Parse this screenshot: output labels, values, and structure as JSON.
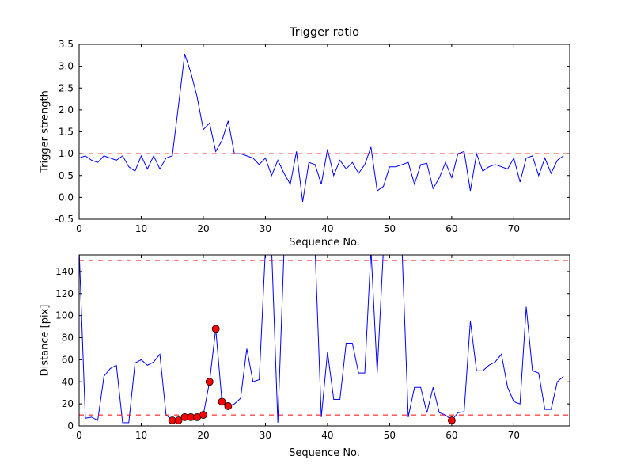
{
  "chart_data": [
    {
      "type": "line",
      "title": "Trigger ratio",
      "xlabel": "Sequence No.",
      "ylabel": "Trigger strength",
      "xlim": [
        0,
        79
      ],
      "ylim": [
        -0.5,
        3.5
      ],
      "xticks": [
        0,
        10,
        20,
        30,
        40,
        50,
        60,
        70
      ],
      "xtick_labels": [
        "0",
        "10",
        "20",
        "30",
        "40",
        "50",
        "60",
        "70"
      ],
      "yticks": [
        -0.5,
        0.0,
        0.5,
        1.0,
        1.5,
        2.0,
        2.5,
        3.0,
        3.5
      ],
      "ytick_labels": [
        "-0.5",
        "0.0",
        "0.5",
        "1.0",
        "1.5",
        "2.0",
        "2.5",
        "3.0",
        "3.5"
      ],
      "grid": false,
      "legend": "none",
      "line_color": "#0000ff",
      "threshold_color": "#ff0000",
      "thresholds": [
        1.0
      ],
      "x": [
        0,
        1,
        2,
        3,
        4,
        5,
        6,
        7,
        8,
        9,
        10,
        11,
        12,
        13,
        14,
        15,
        16,
        17,
        18,
        19,
        20,
        21,
        22,
        23,
        24,
        25,
        26,
        27,
        28,
        29,
        30,
        31,
        32,
        33,
        34,
        35,
        36,
        37,
        38,
        39,
        40,
        41,
        42,
        43,
        44,
        45,
        46,
        47,
        48,
        49,
        50,
        51,
        52,
        53,
        54,
        55,
        56,
        57,
        58,
        59,
        60,
        61,
        62,
        63,
        64,
        65,
        66,
        67,
        68,
        69,
        70,
        71,
        72,
        73,
        74,
        75,
        76,
        77,
        78
      ],
      "y": [
        0.9,
        0.95,
        0.85,
        0.8,
        0.95,
        0.9,
        0.85,
        0.95,
        0.7,
        0.6,
        0.95,
        0.65,
        0.95,
        0.65,
        0.9,
        0.95,
        2.1,
        3.28,
        2.85,
        2.3,
        1.55,
        1.7,
        1.05,
        1.3,
        1.75,
        1.0,
        1.0,
        0.95,
        0.9,
        0.75,
        0.9,
        0.5,
        0.85,
        0.55,
        0.3,
        1.05,
        -0.1,
        0.8,
        0.75,
        0.3,
        1.1,
        0.5,
        0.85,
        0.65,
        0.8,
        0.55,
        0.75,
        1.15,
        0.15,
        0.25,
        0.7,
        0.7,
        0.75,
        0.8,
        0.3,
        0.75,
        0.78,
        0.2,
        0.45,
        0.8,
        0.45,
        1.0,
        1.05,
        0.15,
        1.0,
        0.6,
        0.7,
        0.75,
        0.7,
        0.65,
        0.9,
        0.35,
        0.9,
        0.95,
        0.5,
        0.9,
        0.55,
        0.85,
        0.95
      ],
      "markers": []
    },
    {
      "type": "line",
      "title": "",
      "xlabel": "Sequence No.",
      "ylabel": "Distance [pix]",
      "xlim": [
        0,
        79
      ],
      "ylim": [
        0,
        155
      ],
      "xticks": [
        0,
        10,
        20,
        30,
        40,
        50,
        60,
        70
      ],
      "xtick_labels": [
        "0",
        "10",
        "20",
        "30",
        "40",
        "50",
        "60",
        "70"
      ],
      "yticks": [
        0,
        20,
        40,
        60,
        80,
        100,
        120,
        140
      ],
      "ytick_labels": [
        "0",
        "20",
        "40",
        "60",
        "80",
        "100",
        "120",
        "140"
      ],
      "grid": false,
      "legend": "none",
      "line_color": "#0000ff",
      "threshold_color": "#ff0000",
      "thresholds": [
        150,
        10
      ],
      "marker_color": "#ff0000",
      "x": [
        0,
        1,
        2,
        3,
        4,
        5,
        6,
        7,
        8,
        9,
        10,
        11,
        12,
        13,
        14,
        15,
        16,
        17,
        18,
        19,
        20,
        21,
        22,
        23,
        24,
        25,
        26,
        27,
        28,
        29,
        30,
        31,
        32,
        33,
        34,
        35,
        36,
        37,
        38,
        39,
        40,
        41,
        42,
        43,
        44,
        45,
        46,
        47,
        48,
        49,
        50,
        51,
        52,
        53,
        54,
        55,
        56,
        57,
        58,
        59,
        60,
        61,
        62,
        63,
        64,
        65,
        66,
        67,
        68,
        69,
        70,
        71,
        72,
        73,
        74,
        75,
        76,
        77,
        78
      ],
      "y": [
        160,
        7,
        8,
        5,
        45,
        52,
        55,
        3,
        3,
        57,
        60,
        55,
        58,
        65,
        10,
        5,
        5,
        8,
        8,
        8,
        10,
        40,
        88,
        22,
        18,
        20,
        25,
        70,
        40,
        42,
        160,
        160,
        3,
        160,
        160,
        160,
        160,
        160,
        160,
        8,
        67,
        24,
        24,
        75,
        75,
        48,
        48,
        160,
        48,
        160,
        160,
        160,
        160,
        8,
        35,
        35,
        12,
        35,
        12,
        10,
        5,
        12,
        13,
        95,
        50,
        50,
        55,
        58,
        65,
        35,
        22,
        20,
        108,
        50,
        48,
        15,
        15,
        40,
        45
      ],
      "markers": [
        [
          15,
          5
        ],
        [
          16,
          5
        ],
        [
          17,
          8
        ],
        [
          18,
          8
        ],
        [
          19,
          8
        ],
        [
          20,
          10
        ],
        [
          21,
          40
        ],
        [
          22,
          88
        ],
        [
          23,
          22
        ],
        [
          24,
          18
        ],
        [
          60,
          5
        ]
      ]
    }
  ]
}
